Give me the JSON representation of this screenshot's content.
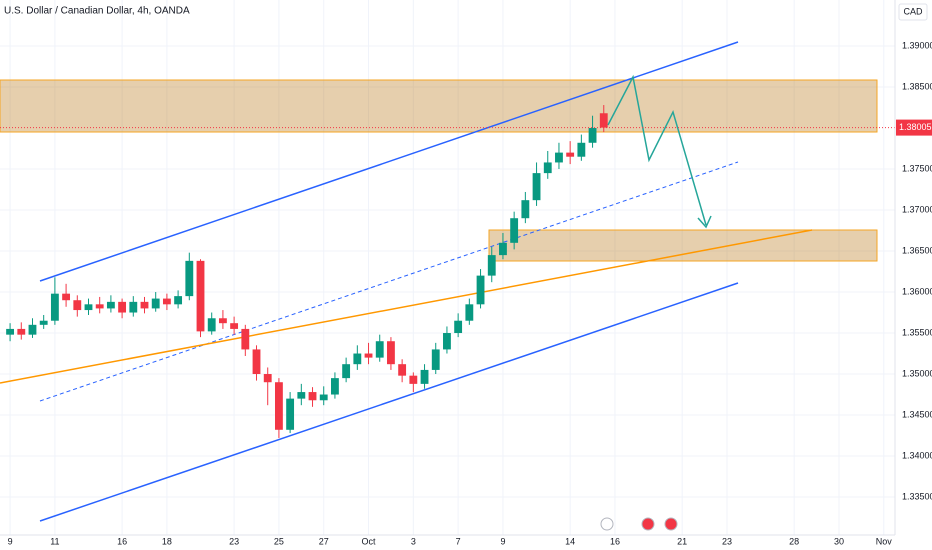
{
  "chart_data": {
    "type": "candlestick",
    "title": "U.S. Dollar / Canadian Dollar, 4h, OANDA",
    "currency": "CAD",
    "up_color": "#089981",
    "down_color": "#f23645",
    "grid": true,
    "xlim": [
      -0.45,
      39.5
    ],
    "ylim": [
      1.33037,
      1.39561
    ],
    "xticks": [
      {
        "value": 0,
        "label": "9"
      },
      {
        "value": 2,
        "label": "11"
      },
      {
        "value": 5,
        "label": "16"
      },
      {
        "value": 7,
        "label": "18"
      },
      {
        "value": 10,
        "label": "23"
      },
      {
        "value": 12,
        "label": "25"
      },
      {
        "value": 14,
        "label": "27"
      },
      {
        "value": 16,
        "label": "Oct"
      },
      {
        "value": 18,
        "label": "3"
      },
      {
        "value": 20,
        "label": "7"
      },
      {
        "value": 22,
        "label": "9"
      },
      {
        "value": 25,
        "label": "14"
      },
      {
        "value": 27,
        "label": "16"
      },
      {
        "value": 30,
        "label": "21"
      },
      {
        "value": 32,
        "label": "23"
      },
      {
        "value": 35,
        "label": "28"
      },
      {
        "value": 37,
        "label": "30"
      },
      {
        "value": 39,
        "label": "Nov"
      }
    ],
    "yticks": [
      {
        "value": 1.335,
        "label": "1.33500"
      },
      {
        "value": 1.34,
        "label": "1.34000"
      },
      {
        "value": 1.345,
        "label": "1.34500"
      },
      {
        "value": 1.35,
        "label": "1.35000"
      },
      {
        "value": 1.355,
        "label": "1.35500"
      },
      {
        "value": 1.36,
        "label": "1.36000"
      },
      {
        "value": 1.365,
        "label": "1.36500"
      },
      {
        "value": 1.37,
        "label": "1.37000"
      },
      {
        "value": 1.375,
        "label": "1.37500"
      },
      {
        "value": 1.385,
        "label": "1.38500"
      },
      {
        "value": 1.39,
        "label": "1.39000"
      }
    ],
    "x": [
      0,
      0.5,
      1,
      1.5,
      2,
      2.5,
      3,
      3.5,
      4,
      4.5,
      5,
      5.5,
      6,
      6.5,
      7,
      7.5,
      8,
      8.5,
      9,
      9.5,
      10,
      10.5,
      11,
      11.5,
      12,
      12.5,
      13,
      13.5,
      14,
      14.5,
      15,
      15.5,
      16,
      16.5,
      17,
      17.5,
      18,
      18.5,
      19,
      19.5,
      20,
      20.5,
      21,
      21.5,
      22,
      22.5,
      23,
      23.5,
      24,
      24.5,
      25,
      25.5,
      26,
      26.5
    ],
    "open": [
      1.3548,
      1.3555,
      1.3548,
      1.356,
      1.3565,
      1.3598,
      1.359,
      1.3578,
      1.3585,
      1.358,
      1.3588,
      1.3575,
      1.3588,
      1.358,
      1.3592,
      1.3585,
      1.3595,
      1.3638,
      1.3552,
      1.3568,
      1.3562,
      1.3555,
      1.353,
      1.35,
      1.349,
      1.3432,
      1.347,
      1.3478,
      1.3468,
      1.3475,
      1.3495,
      1.3512,
      1.3525,
      1.352,
      1.354,
      1.3512,
      1.3498,
      1.3488,
      1.3505,
      1.353,
      1.355,
      1.3565,
      1.3585,
      1.362,
      1.3645,
      1.366,
      1.369,
      1.3712,
      1.3745,
      1.3758,
      1.377,
      1.3765,
      1.3782,
      1.3818
    ],
    "high": [
      1.3562,
      1.3563,
      1.3568,
      1.3572,
      1.3618,
      1.361,
      1.3596,
      1.3592,
      1.3594,
      1.3596,
      1.3592,
      1.3595,
      1.3594,
      1.36,
      1.3598,
      1.3602,
      1.3648,
      1.364,
      1.3575,
      1.3578,
      1.357,
      1.356,
      1.3535,
      1.3508,
      1.3495,
      1.3478,
      1.3488,
      1.3484,
      1.3485,
      1.3502,
      1.352,
      1.3535,
      1.3538,
      1.3548,
      1.3545,
      1.3518,
      1.3502,
      1.3512,
      1.3538,
      1.3558,
      1.3574,
      1.3592,
      1.3628,
      1.3655,
      1.3672,
      1.3698,
      1.3722,
      1.3758,
      1.3772,
      1.3782,
      1.3784,
      1.3792,
      1.3815,
      1.3828
    ],
    "low": [
      1.354,
      1.3542,
      1.3544,
      1.3555,
      1.356,
      1.3582,
      1.357,
      1.3572,
      1.3574,
      1.3575,
      1.3568,
      1.357,
      1.3574,
      1.3576,
      1.3578,
      1.358,
      1.359,
      1.3545,
      1.3548,
      1.3555,
      1.3548,
      1.3522,
      1.3492,
      1.3462,
      1.3422,
      1.3428,
      1.3462,
      1.346,
      1.3462,
      1.347,
      1.349,
      1.3505,
      1.3512,
      1.3515,
      1.3505,
      1.349,
      1.3478,
      1.3482,
      1.35,
      1.3525,
      1.3545,
      1.356,
      1.358,
      1.3612,
      1.364,
      1.3652,
      1.3684,
      1.3705,
      1.3738,
      1.375,
      1.3756,
      1.376,
      1.3776,
      1.3795
    ],
    "close": [
      1.3555,
      1.3548,
      1.356,
      1.3565,
      1.3598,
      1.359,
      1.3578,
      1.3585,
      1.358,
      1.3588,
      1.3575,
      1.3588,
      1.358,
      1.3592,
      1.3585,
      1.3595,
      1.3638,
      1.3552,
      1.3568,
      1.3562,
      1.3555,
      1.353,
      1.35,
      1.349,
      1.3432,
      1.347,
      1.3478,
      1.3468,
      1.3475,
      1.3495,
      1.3512,
      1.3525,
      1.352,
      1.354,
      1.3512,
      1.3498,
      1.3488,
      1.3505,
      1.353,
      1.355,
      1.3565,
      1.3585,
      1.362,
      1.3645,
      1.366,
      1.369,
      1.3712,
      1.3745,
      1.3758,
      1.377,
      1.3765,
      1.3782,
      1.38,
      1.38005
    ]
  }
}
